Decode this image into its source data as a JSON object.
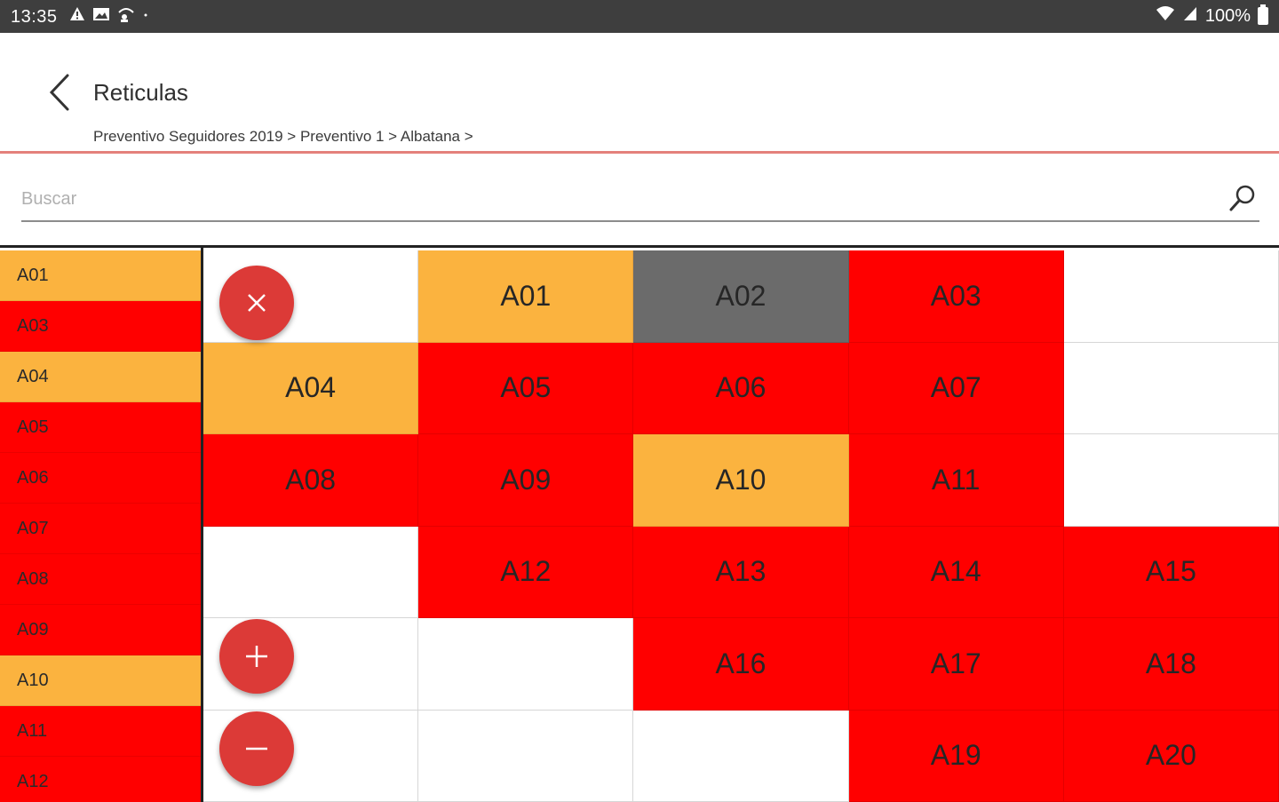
{
  "status_bar": {
    "time": "13:35",
    "left_icons": [
      "warning-icon",
      "gallery-icon",
      "wifi-user-icon",
      "dot-icon"
    ],
    "right_icons": [
      "wifi-icon",
      "signal-icon"
    ],
    "battery_text": "100%"
  },
  "header": {
    "title": "Reticulas",
    "breadcrumb": "Preventivo Seguidores 2019 > Preventivo 1 > Albatana >"
  },
  "search": {
    "placeholder": "Buscar",
    "value": ""
  },
  "colors": {
    "red": "#ff0000",
    "orange": "#fbb33f",
    "gray": "#6b6b6b",
    "fab": "#dc3a37",
    "accent_line": "#e4817b"
  },
  "list": [
    {
      "label": "A01",
      "status": "orange"
    },
    {
      "label": "A03",
      "status": "red"
    },
    {
      "label": "A04",
      "status": "orange"
    },
    {
      "label": "A05",
      "status": "red"
    },
    {
      "label": "A06",
      "status": "red"
    },
    {
      "label": "A07",
      "status": "red"
    },
    {
      "label": "A08",
      "status": "red"
    },
    {
      "label": "A09",
      "status": "red"
    },
    {
      "label": "A10",
      "status": "orange"
    },
    {
      "label": "A11",
      "status": "red"
    },
    {
      "label": "A12",
      "status": "red"
    }
  ],
  "grid": [
    [
      {
        "label": "",
        "status": "white"
      },
      {
        "label": "A01",
        "status": "orange"
      },
      {
        "label": "A02",
        "status": "gray"
      },
      {
        "label": "A03",
        "status": "red"
      },
      {
        "label": "",
        "status": "white"
      }
    ],
    [
      {
        "label": "A04",
        "status": "orange"
      },
      {
        "label": "A05",
        "status": "red"
      },
      {
        "label": "A06",
        "status": "red"
      },
      {
        "label": "A07",
        "status": "red"
      },
      {
        "label": "",
        "status": "white"
      }
    ],
    [
      {
        "label": "A08",
        "status": "red"
      },
      {
        "label": "A09",
        "status": "red"
      },
      {
        "label": "A10",
        "status": "orange"
      },
      {
        "label": "A11",
        "status": "red"
      },
      {
        "label": "",
        "status": "white"
      }
    ],
    [
      {
        "label": "",
        "status": "white"
      },
      {
        "label": "A12",
        "status": "red"
      },
      {
        "label": "A13",
        "status": "red"
      },
      {
        "label": "A14",
        "status": "red"
      },
      {
        "label": "A15",
        "status": "red"
      }
    ],
    [
      {
        "label": "",
        "status": "white"
      },
      {
        "label": "",
        "status": "white"
      },
      {
        "label": "A16",
        "status": "red"
      },
      {
        "label": "A17",
        "status": "red"
      },
      {
        "label": "A18",
        "status": "red"
      }
    ],
    [
      {
        "label": "",
        "status": "white"
      },
      {
        "label": "",
        "status": "white"
      },
      {
        "label": "",
        "status": "white"
      },
      {
        "label": "A19",
        "status": "red"
      },
      {
        "label": "A20",
        "status": "red"
      }
    ]
  ],
  "fabs": {
    "close": {
      "icon": "close-icon"
    },
    "zoom_in": {
      "icon": "plus-icon"
    },
    "zoom_out": {
      "icon": "minus-icon"
    }
  }
}
